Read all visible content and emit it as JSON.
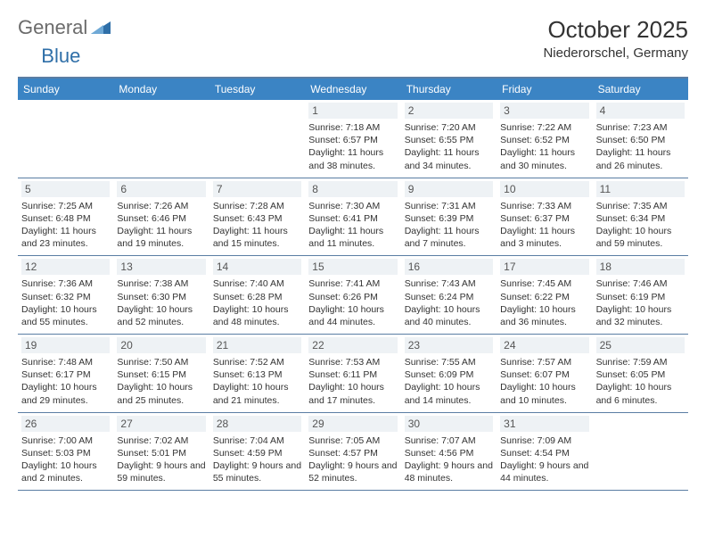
{
  "brand": {
    "part1": "General",
    "part2": "Blue"
  },
  "title": "October 2025",
  "location": "Niederorschel, Germany",
  "colors": {
    "header_bg": "#3b84c4",
    "rule": "#5a7da3",
    "daynum_bg": "#eef2f5",
    "text": "#333333",
    "brand_gray": "#6b6b6b",
    "brand_blue": "#2f6fa8",
    "page_bg": "#ffffff"
  },
  "typography": {
    "title_fontsize": 26,
    "location_fontsize": 15,
    "weekday_fontsize": 12,
    "daynum_fontsize": 12,
    "body_fontsize": 10.5
  },
  "layout": {
    "columns": 7,
    "cell_min_height": 78
  },
  "weekdays": [
    "Sunday",
    "Monday",
    "Tuesday",
    "Wednesday",
    "Thursday",
    "Friday",
    "Saturday"
  ],
  "weeks": [
    [
      null,
      null,
      null,
      {
        "n": "1",
        "sunrise": "7:18 AM",
        "sunset": "6:57 PM",
        "daylight": "11 hours and 38 minutes."
      },
      {
        "n": "2",
        "sunrise": "7:20 AM",
        "sunset": "6:55 PM",
        "daylight": "11 hours and 34 minutes."
      },
      {
        "n": "3",
        "sunrise": "7:22 AM",
        "sunset": "6:52 PM",
        "daylight": "11 hours and 30 minutes."
      },
      {
        "n": "4",
        "sunrise": "7:23 AM",
        "sunset": "6:50 PM",
        "daylight": "11 hours and 26 minutes."
      }
    ],
    [
      {
        "n": "5",
        "sunrise": "7:25 AM",
        "sunset": "6:48 PM",
        "daylight": "11 hours and 23 minutes."
      },
      {
        "n": "6",
        "sunrise": "7:26 AM",
        "sunset": "6:46 PM",
        "daylight": "11 hours and 19 minutes."
      },
      {
        "n": "7",
        "sunrise": "7:28 AM",
        "sunset": "6:43 PM",
        "daylight": "11 hours and 15 minutes."
      },
      {
        "n": "8",
        "sunrise": "7:30 AM",
        "sunset": "6:41 PM",
        "daylight": "11 hours and 11 minutes."
      },
      {
        "n": "9",
        "sunrise": "7:31 AM",
        "sunset": "6:39 PM",
        "daylight": "11 hours and 7 minutes."
      },
      {
        "n": "10",
        "sunrise": "7:33 AM",
        "sunset": "6:37 PM",
        "daylight": "11 hours and 3 minutes."
      },
      {
        "n": "11",
        "sunrise": "7:35 AM",
        "sunset": "6:34 PM",
        "daylight": "10 hours and 59 minutes."
      }
    ],
    [
      {
        "n": "12",
        "sunrise": "7:36 AM",
        "sunset": "6:32 PM",
        "daylight": "10 hours and 55 minutes."
      },
      {
        "n": "13",
        "sunrise": "7:38 AM",
        "sunset": "6:30 PM",
        "daylight": "10 hours and 52 minutes."
      },
      {
        "n": "14",
        "sunrise": "7:40 AM",
        "sunset": "6:28 PM",
        "daylight": "10 hours and 48 minutes."
      },
      {
        "n": "15",
        "sunrise": "7:41 AM",
        "sunset": "6:26 PM",
        "daylight": "10 hours and 44 minutes."
      },
      {
        "n": "16",
        "sunrise": "7:43 AM",
        "sunset": "6:24 PM",
        "daylight": "10 hours and 40 minutes."
      },
      {
        "n": "17",
        "sunrise": "7:45 AM",
        "sunset": "6:22 PM",
        "daylight": "10 hours and 36 minutes."
      },
      {
        "n": "18",
        "sunrise": "7:46 AM",
        "sunset": "6:19 PM",
        "daylight": "10 hours and 32 minutes."
      }
    ],
    [
      {
        "n": "19",
        "sunrise": "7:48 AM",
        "sunset": "6:17 PM",
        "daylight": "10 hours and 29 minutes."
      },
      {
        "n": "20",
        "sunrise": "7:50 AM",
        "sunset": "6:15 PM",
        "daylight": "10 hours and 25 minutes."
      },
      {
        "n": "21",
        "sunrise": "7:52 AM",
        "sunset": "6:13 PM",
        "daylight": "10 hours and 21 minutes."
      },
      {
        "n": "22",
        "sunrise": "7:53 AM",
        "sunset": "6:11 PM",
        "daylight": "10 hours and 17 minutes."
      },
      {
        "n": "23",
        "sunrise": "7:55 AM",
        "sunset": "6:09 PM",
        "daylight": "10 hours and 14 minutes."
      },
      {
        "n": "24",
        "sunrise": "7:57 AM",
        "sunset": "6:07 PM",
        "daylight": "10 hours and 10 minutes."
      },
      {
        "n": "25",
        "sunrise": "7:59 AM",
        "sunset": "6:05 PM",
        "daylight": "10 hours and 6 minutes."
      }
    ],
    [
      {
        "n": "26",
        "sunrise": "7:00 AM",
        "sunset": "5:03 PM",
        "daylight": "10 hours and 2 minutes."
      },
      {
        "n": "27",
        "sunrise": "7:02 AM",
        "sunset": "5:01 PM",
        "daylight": "9 hours and 59 minutes."
      },
      {
        "n": "28",
        "sunrise": "7:04 AM",
        "sunset": "4:59 PM",
        "daylight": "9 hours and 55 minutes."
      },
      {
        "n": "29",
        "sunrise": "7:05 AM",
        "sunset": "4:57 PM",
        "daylight": "9 hours and 52 minutes."
      },
      {
        "n": "30",
        "sunrise": "7:07 AM",
        "sunset": "4:56 PM",
        "daylight": "9 hours and 48 minutes."
      },
      {
        "n": "31",
        "sunrise": "7:09 AM",
        "sunset": "4:54 PM",
        "daylight": "9 hours and 44 minutes."
      },
      null
    ]
  ],
  "labels": {
    "sunrise": "Sunrise:",
    "sunset": "Sunset:",
    "daylight": "Daylight:"
  }
}
